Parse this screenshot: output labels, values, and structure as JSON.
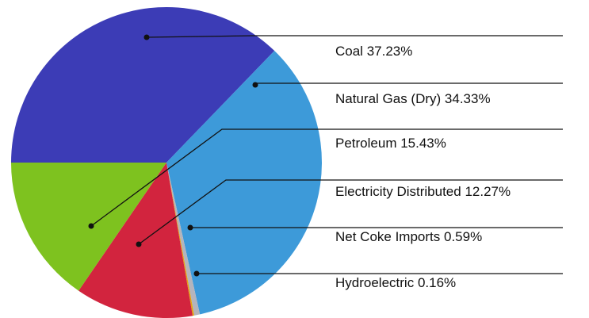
{
  "chart_data": {
    "type": "pie",
    "categories": [
      "Coal",
      "Natural Gas (Dry)",
      "Net Coke Imports",
      "Hydroelectric",
      "Electricity Distributed",
      "Petroleum"
    ],
    "values": [
      37.23,
      34.33,
      0.59,
      0.16,
      12.27,
      15.43
    ],
    "value_labels": [
      "37.23%",
      "34.33%",
      "0.59%",
      "0.16%",
      "12.27%",
      "15.43%"
    ],
    "colors": [
      "#3c3cb6",
      "#3d9ad9",
      "#b4b4bc",
      "#e3a312",
      "#d2243e",
      "#7ec21f"
    ]
  }
}
